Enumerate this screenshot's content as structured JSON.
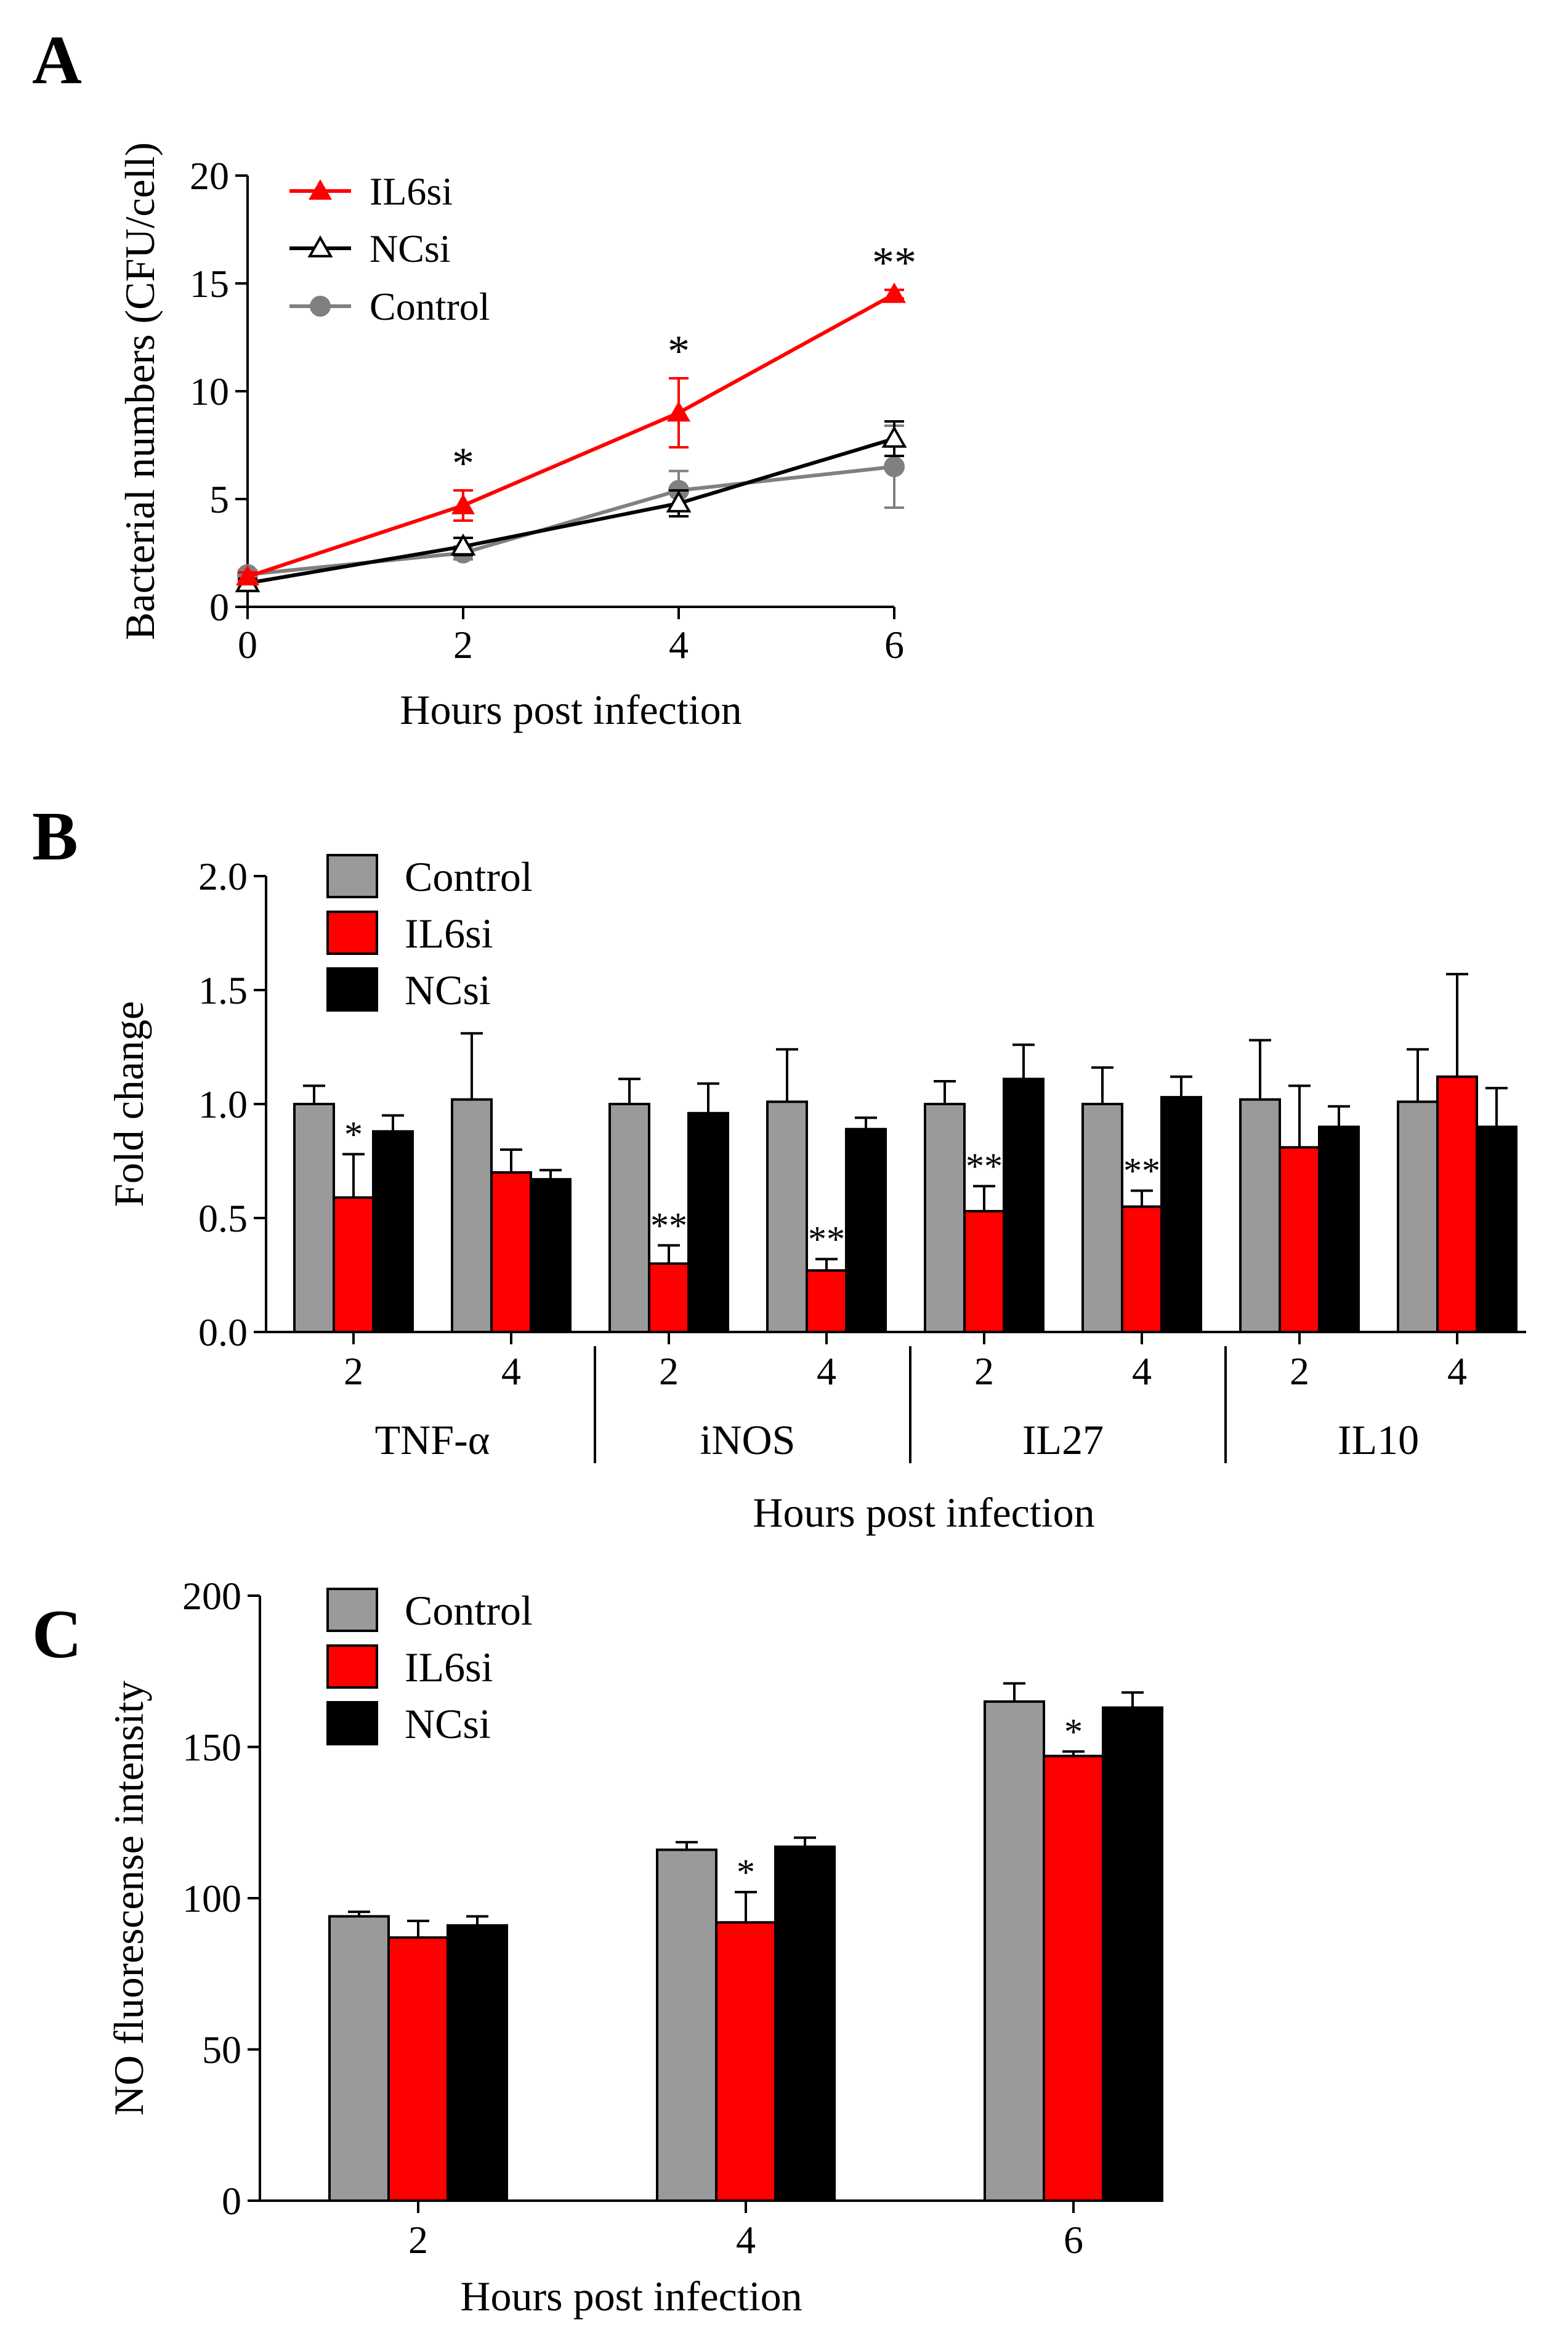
{
  "colors": {
    "control": "#9a9a9a",
    "il6si": "#ff0000",
    "ncsi": "#000000",
    "control_line": "#808080"
  },
  "chart_data": [
    {
      "panel": "A",
      "type": "line",
      "xlabel": "Hours post infection",
      "ylabel": "Bacterial numbers (CFU/cell)",
      "x": [
        0,
        2,
        4,
        6
      ],
      "x_ticks": [
        "0",
        "2",
        "4",
        "6"
      ],
      "ylim": [
        0,
        20
      ],
      "y_ticks": [
        "0",
        "5",
        "10",
        "15",
        "20"
      ],
      "legend_position": "top-left",
      "series": [
        {
          "name": "IL6si",
          "values": [
            1.4,
            4.7,
            9.0,
            14.5
          ],
          "errors": [
            0.2,
            0.7,
            1.6,
            0.2
          ],
          "marker": "filled-triangle",
          "color_key": "il6si"
        },
        {
          "name": "NCsi",
          "values": [
            1.1,
            2.8,
            4.8,
            7.8
          ],
          "errors": [
            0.2,
            0.4,
            0.6,
            0.8
          ],
          "marker": "open-triangle",
          "color_key": "ncsi"
        },
        {
          "name": "Control",
          "values": [
            1.5,
            2.5,
            5.4,
            6.5
          ],
          "errors": [
            0.2,
            0.3,
            0.9,
            1.9
          ],
          "marker": "filled-circle",
          "color_key": "control_line"
        }
      ],
      "annotations": [
        {
          "x": 2,
          "text": "*"
        },
        {
          "x": 4,
          "text": "*"
        },
        {
          "x": 6,
          "text": "**"
        }
      ]
    },
    {
      "panel": "B",
      "type": "bar",
      "ylabel": "Fold change",
      "xlabel": "Hours post infection",
      "ylim": [
        0,
        2
      ],
      "y_ticks": [
        "0.0",
        "0.5",
        "1.0",
        "1.5",
        "2.0"
      ],
      "legend_position": "top-left",
      "groups": [
        "TNF-α",
        "iNOS",
        "IL27",
        "IL10"
      ],
      "categories": [
        "2",
        "4",
        "2",
        "4",
        "2",
        "4",
        "2",
        "4"
      ],
      "series": [
        {
          "name": "Control",
          "color_key": "control",
          "values": [
            1.0,
            1.02,
            1.0,
            1.01,
            1.0,
            1.0,
            1.02,
            1.01
          ],
          "errors": [
            0.08,
            0.29,
            0.11,
            0.23,
            0.1,
            0.16,
            0.26,
            0.23
          ]
        },
        {
          "name": "IL6si",
          "color_key": "il6si",
          "values": [
            0.59,
            0.7,
            0.3,
            0.27,
            0.53,
            0.55,
            0.81,
            1.12
          ],
          "errors": [
            0.19,
            0.1,
            0.08,
            0.05,
            0.11,
            0.07,
            0.27,
            0.45
          ]
        },
        {
          "name": "NCsi",
          "color_key": "ncsi",
          "values": [
            0.88,
            0.67,
            0.96,
            0.89,
            1.11,
            1.03,
            0.9,
            0.9
          ],
          "errors": [
            0.07,
            0.04,
            0.13,
            0.05,
            0.15,
            0.09,
            0.09,
            0.17
          ]
        }
      ],
      "annotations": [
        {
          "category_index": 0,
          "series": "IL6si",
          "text": "*"
        },
        {
          "category_index": 2,
          "series": "IL6si",
          "text": "**"
        },
        {
          "category_index": 3,
          "series": "IL6si",
          "text": "**"
        },
        {
          "category_index": 4,
          "series": "IL6si",
          "text": "**"
        },
        {
          "category_index": 5,
          "series": "IL6si",
          "text": "**"
        }
      ]
    },
    {
      "panel": "C",
      "type": "bar",
      "ylabel": "NO fluorescense intensity",
      "xlabel": "Hours post infection",
      "ylim": [
        0,
        200
      ],
      "y_ticks": [
        "0",
        "50",
        "100",
        "150",
        "200"
      ],
      "legend_position": "top-left",
      "categories": [
        "2",
        "4",
        "6"
      ],
      "series": [
        {
          "name": "Control",
          "color_key": "control",
          "values": [
            94,
            116,
            165
          ],
          "errors": [
            1.5,
            2.5,
            6
          ]
        },
        {
          "name": "IL6si",
          "color_key": "il6si",
          "values": [
            87,
            92,
            147
          ],
          "errors": [
            5.5,
            10,
            1.5
          ]
        },
        {
          "name": "NCsi",
          "color_key": "ncsi",
          "values": [
            91,
            117,
            163
          ],
          "errors": [
            3,
            3,
            5
          ]
        }
      ],
      "annotations": [
        {
          "category_index": 1,
          "series": "IL6si",
          "text": "*"
        },
        {
          "category_index": 2,
          "series": "IL6si",
          "text": "*"
        }
      ]
    }
  ]
}
